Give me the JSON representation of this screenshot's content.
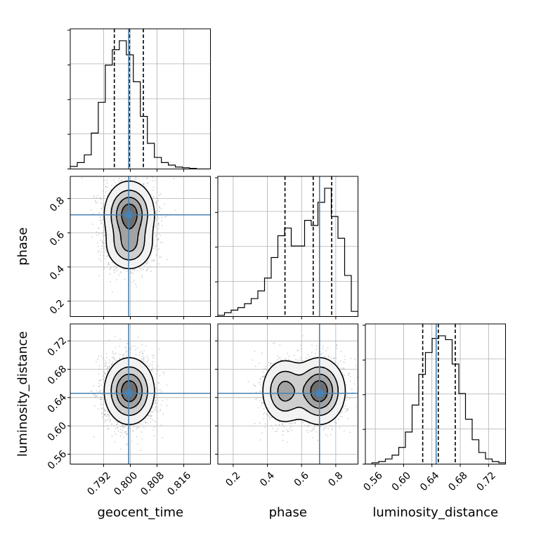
{
  "chart_data": {
    "type": "corner",
    "parameters": [
      {
        "name": "geocent_time",
        "label": "geocent_time",
        "range": [
          0.782,
          0.824
        ],
        "ticks": [
          0.792,
          0.8,
          0.808,
          0.816
        ],
        "tick_labels": [
          "0.792",
          "0.800",
          "0.808",
          "0.816"
        ]
      },
      {
        "name": "phase",
        "label": "phase",
        "range": [
          0.11,
          0.93
        ],
        "ticks": [
          0.2,
          0.4,
          0.6,
          0.8
        ],
        "tick_labels": [
          "0.2",
          "0.4",
          "0.6",
          "0.8"
        ]
      },
      {
        "name": "luminosity_distance",
        "label": "luminosity_distance",
        "range": [
          0.546,
          0.744
        ],
        "ticks": [
          0.56,
          0.6,
          0.64,
          0.68,
          0.72
        ],
        "tick_labels": [
          "0.56",
          "0.60",
          "0.64",
          "0.68",
          "0.72"
        ]
      }
    ],
    "truths": [
      0.7995,
      0.705,
      0.646
    ],
    "truth_color": "#4682b4",
    "quantiles": [
      [
        0.7952,
        0.7997,
        0.8039
      ],
      [
        0.503,
        0.668,
        0.776
      ],
      [
        0.627,
        0.649,
        0.673
      ]
    ],
    "histograms": [
      [
        0.02,
        0.05,
        0.11,
        0.28,
        0.52,
        0.81,
        0.93,
        1.0,
        0.89,
        0.68,
        0.41,
        0.2,
        0.09,
        0.05,
        0.03,
        0.015,
        0.01,
        0.005,
        0.0,
        0.0
      ],
      [
        0.01,
        0.03,
        0.05,
        0.07,
        0.1,
        0.14,
        0.2,
        0.3,
        0.46,
        0.63,
        0.69,
        0.55,
        0.55,
        0.75,
        0.71,
        0.89,
        1.0,
        0.78,
        0.61,
        0.32,
        0.04
      ],
      [
        0.0,
        0.01,
        0.02,
        0.04,
        0.07,
        0.13,
        0.25,
        0.46,
        0.7,
        0.87,
        0.98,
        1.0,
        0.97,
        0.78,
        0.55,
        0.35,
        0.19,
        0.09,
        0.04,
        0.02,
        0.01
      ]
    ],
    "posterior_modes": [
      {
        "pair": [
          0,
          1
        ],
        "modes": [
          {
            "mean": [
              0.7997,
              0.71
            ],
            "sd": [
              0.0035,
              0.09
            ],
            "weight": 0.7
          },
          {
            "mean": [
              0.7997,
              0.52
            ],
            "sd": [
              0.0035,
              0.07
            ],
            "weight": 0.3
          }
        ]
      },
      {
        "pair": [
          0,
          2
        ],
        "modes": [
          {
            "mean": [
              0.7997,
              0.649
            ],
            "sd": [
              0.0035,
              0.022
            ],
            "weight": 1.0
          }
        ]
      },
      {
        "pair": [
          1,
          2
        ],
        "modes": [
          {
            "mean": [
              0.705,
              0.649
            ],
            "sd": [
              0.07,
              0.022
            ],
            "weight": 0.62
          },
          {
            "mean": [
              0.5,
              0.649
            ],
            "sd": [
              0.065,
              0.022
            ],
            "weight": 0.38
          }
        ]
      }
    ],
    "grid": true,
    "contour_levels": 4
  }
}
